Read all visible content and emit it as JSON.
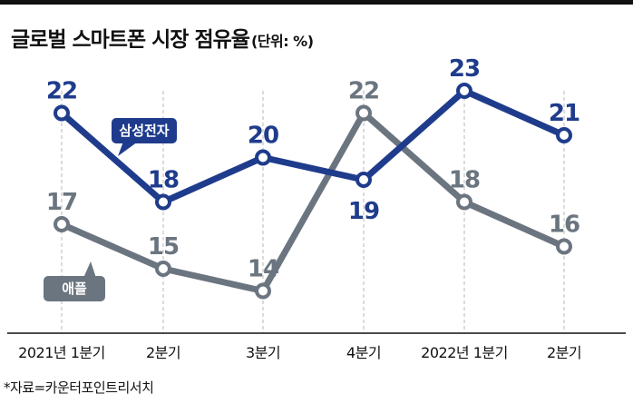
{
  "header": {
    "title": "글로벌 스마트폰 시장 점유율",
    "unit": "(단위: %)"
  },
  "source": "*자료=카운터포인트리서치",
  "colors": {
    "samsung": "#1f3c8c",
    "apple": "#6b7580",
    "grid": "#b8b8b8",
    "axis": "#111111"
  },
  "chart_data": {
    "type": "line",
    "categories": [
      "2021년 1분기",
      "2분기",
      "3분기",
      "4분기",
      "2022년 1분기",
      "2분기"
    ],
    "series": [
      {
        "name": "삼성전자",
        "values": [
          22,
          18,
          20,
          19,
          23,
          21
        ]
      },
      {
        "name": "애플",
        "values": [
          17,
          15,
          14,
          22,
          18,
          16
        ]
      }
    ],
    "title": "글로벌 스마트폰 시장 점유율",
    "unit": "%",
    "legend": "callout labels on lines",
    "grid": "vertical dashed lines"
  }
}
